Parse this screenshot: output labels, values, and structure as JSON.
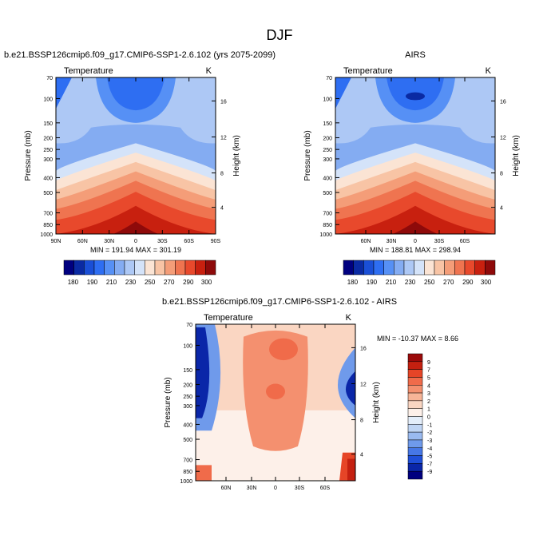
{
  "page_title": "DJF",
  "chart_data": [
    {
      "type": "heatmap",
      "id": "model",
      "title": "b.e21.BSSP126cmip6.f09_g17.CMIP6-SSP1-2.6.102 (yrs 2075-2099)",
      "left_label": "Temperature",
      "right_label": "K",
      "ylabel": "Pressure (mb)",
      "ylabel_right": "Height (km)",
      "x_ticks": [
        "90N",
        "60N",
        "30N",
        "0",
        "30S",
        "60S",
        "90S"
      ],
      "y_ticks": [
        "70",
        "100",
        "150",
        "200",
        "250",
        "300",
        "400",
        "500",
        "700",
        "850",
        "1000"
      ],
      "height_ticks": [
        "16",
        "12",
        "8",
        "4"
      ],
      "min_max_text": "MIN = 191.94   MAX = 301.19",
      "min": 191.94,
      "max": 301.19,
      "colorbar_labels": [
        "180",
        "190",
        "210",
        "230",
        "250",
        "270",
        "290",
        "300"
      ]
    },
    {
      "type": "heatmap",
      "id": "obs",
      "title": "AIRS",
      "left_label": "Temperature",
      "right_label": "K",
      "ylabel": "Pressure (mb)",
      "ylabel_right": "Height (km)",
      "x_ticks": [
        "60N",
        "30N",
        "0",
        "30S",
        "60S"
      ],
      "y_ticks": [
        "70",
        "100",
        "150",
        "200",
        "250",
        "300",
        "400",
        "500",
        "700",
        "850",
        "1000"
      ],
      "height_ticks": [
        "16",
        "12",
        "8",
        "4"
      ],
      "min_max_text": "MIN = 188.81   MAX = 298.94",
      "min": 188.81,
      "max": 298.94,
      "colorbar_labels": [
        "180",
        "190",
        "210",
        "230",
        "250",
        "270",
        "290",
        "300"
      ]
    },
    {
      "type": "heatmap",
      "id": "diff",
      "title": "b.e21.BSSP126cmip6.f09_g17.CMIP6-SSP1-2.6.102 - AIRS",
      "left_label": "Temperature",
      "right_label": "K",
      "ylabel": "Pressure (mb)",
      "ylabel_right": "Height (km)",
      "x_ticks": [
        "60N",
        "30N",
        "0",
        "30S",
        "60S"
      ],
      "y_ticks": [
        "70",
        "100",
        "150",
        "200",
        "250",
        "300",
        "400",
        "500",
        "700",
        "850",
        "1000"
      ],
      "height_ticks": [
        "16",
        "12",
        "8",
        "4"
      ],
      "min_max_text": "MIN = -10.37  MAX =   8.66",
      "min": -10.37,
      "max": 8.66,
      "colorbar_labels": [
        "9",
        "7",
        "5",
        "4",
        "3",
        "2",
        "1",
        "0",
        "-1",
        "-2",
        "-3",
        "-4",
        "-5",
        "-7",
        "-9"
      ]
    }
  ],
  "colors": {
    "abs_scale": [
      "#00007f",
      "#0a2aa3",
      "#1a4fd6",
      "#2e6ef2",
      "#5690f5",
      "#84acf2",
      "#adc8f5",
      "#d4e3f9",
      "#fbe4d4",
      "#f8c4a5",
      "#f49d78",
      "#ef7450",
      "#e8492c",
      "#c8200f",
      "#8e0a0a"
    ],
    "diff_scale": [
      "#9b0a0a",
      "#c42010",
      "#e64527",
      "#f06b4a",
      "#f4906f",
      "#f7b497",
      "#fad6c2",
      "#fdf0e9",
      "#e4eefa",
      "#c0d5f4",
      "#9abaf0",
      "#6f9aeb",
      "#4677e6",
      "#1f4fd8",
      "#0a26a8",
      "#00007f"
    ]
  }
}
